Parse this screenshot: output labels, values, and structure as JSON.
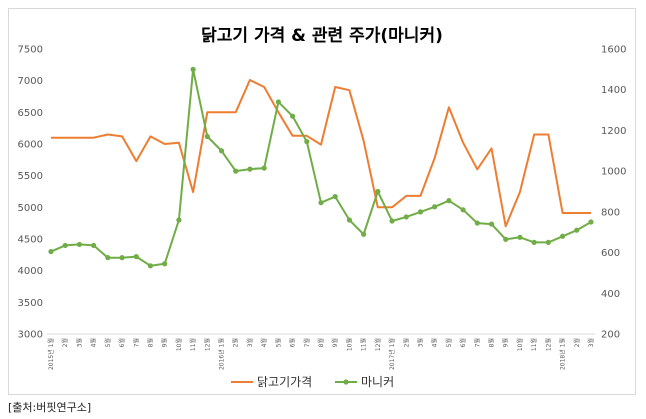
{
  "source_note": "[출처:버핏연구소]",
  "chart_data": {
    "type": "line",
    "title": "닭고기 가격 & 관련 주가(마니커)",
    "xlabel": "",
    "ylabel": "",
    "y_left": {
      "min": 3000,
      "max": 7500,
      "step": 500
    },
    "y_right": {
      "min": 200,
      "max": 1600,
      "step": 200
    },
    "grid": false,
    "legend": "bottom",
    "x": [
      "2015년 1월",
      "2월",
      "3월",
      "4월",
      "5월",
      "6월",
      "7월",
      "8월",
      "9월",
      "10월",
      "11월",
      "12월",
      "2016년 1월",
      "2월",
      "3월",
      "4월",
      "5월",
      "6월",
      "7월",
      "8월",
      "9월",
      "10월",
      "11월",
      "12월",
      "2017년 1월",
      "2월",
      "3월",
      "4월",
      "5월",
      "6월",
      "7월",
      "8월",
      "9월",
      "10월",
      "11월",
      "12월",
      "2018년 1월",
      "2월",
      "3월"
    ],
    "series": [
      {
        "name": "닭고기가격",
        "axis": "left",
        "color": "#ed7d31",
        "marker": false,
        "values": [
          6100,
          6100,
          6100,
          6100,
          6150,
          6120,
          5730,
          6120,
          6000,
          6020,
          5240,
          6500,
          6500,
          6500,
          7010,
          6900,
          6500,
          6130,
          6130,
          5990,
          6900,
          6850,
          6050,
          5000,
          5000,
          5180,
          5180,
          5780,
          6580,
          6020,
          5600,
          5930,
          4700,
          5240,
          6150,
          6150,
          4910,
          4910,
          4910
        ]
      },
      {
        "name": "마니커",
        "axis": "right",
        "color": "#70ad47",
        "marker": true,
        "values": [
          605,
          635,
          640,
          635,
          575,
          575,
          580,
          535,
          545,
          760,
          1500,
          1170,
          1100,
          1000,
          1010,
          1015,
          1340,
          1270,
          1145,
          845,
          875,
          760,
          690,
          900,
          755,
          775,
          800,
          825,
          855,
          810,
          745,
          740,
          665,
          675,
          650,
          650,
          680,
          710,
          750
        ]
      }
    ]
  }
}
